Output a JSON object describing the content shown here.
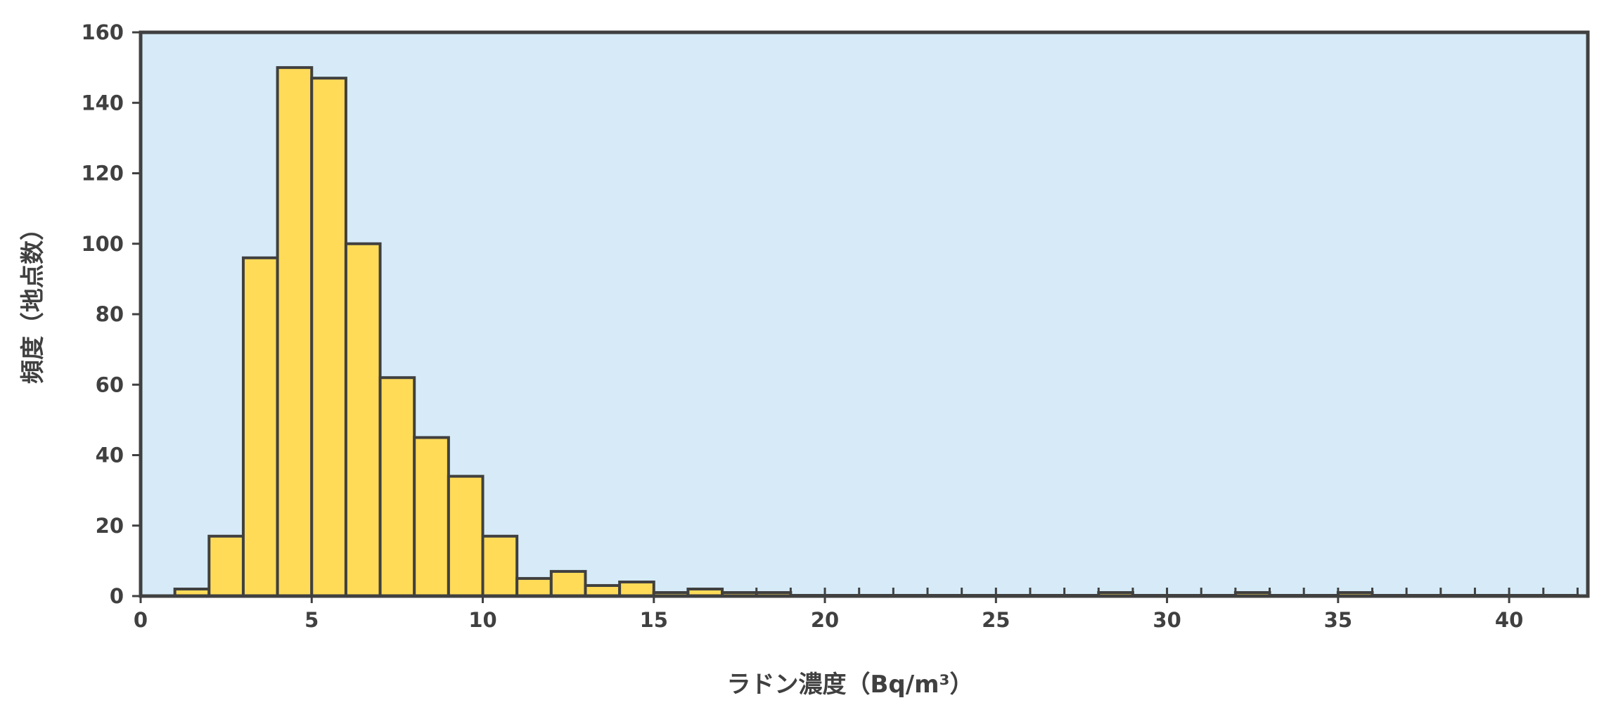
{
  "chart_data": {
    "type": "bar",
    "title": "",
    "xlabel": "ラドン濃度（Bq/m³）",
    "ylabel": "頻度（地点数）",
    "xlim": [
      0,
      42.3
    ],
    "ylim": [
      0,
      160
    ],
    "xticks": [
      0,
      5,
      10,
      15,
      20,
      25,
      30,
      35,
      40
    ],
    "xtick_labels": [
      "0",
      "5",
      "10",
      "15",
      "20",
      "25",
      "30",
      "35",
      "40"
    ],
    "yticks": [
      0,
      20,
      40,
      60,
      80,
      100,
      120,
      140,
      160
    ],
    "ytick_labels": [
      "0",
      "20",
      "40",
      "60",
      "80",
      "100",
      "120",
      "140",
      "160"
    ],
    "bin_width": 1,
    "bins_start": [
      1,
      2,
      3,
      4,
      5,
      6,
      7,
      8,
      9,
      10,
      11,
      12,
      13,
      14,
      15,
      16,
      17,
      18,
      19,
      20,
      21,
      22,
      23,
      24,
      25,
      26,
      27,
      28,
      29,
      30,
      31,
      32,
      33,
      34,
      35,
      36,
      37,
      38,
      39,
      40,
      41
    ],
    "values": [
      2,
      17,
      96,
      150,
      147,
      100,
      62,
      45,
      34,
      17,
      5,
      7,
      3,
      4,
      1,
      2,
      1,
      1,
      0,
      0,
      0,
      0,
      0,
      0,
      0,
      0,
      0,
      1,
      0,
      0,
      0,
      1,
      0,
      0,
      1,
      0,
      0,
      0,
      0,
      0,
      0
    ],
    "grid": false,
    "legend": "none",
    "colors": {
      "bar_fill": "#FFDB58",
      "bar_edge": "#404040",
      "plot_background": "#D6EBF7",
      "axis": "#404040"
    }
  }
}
